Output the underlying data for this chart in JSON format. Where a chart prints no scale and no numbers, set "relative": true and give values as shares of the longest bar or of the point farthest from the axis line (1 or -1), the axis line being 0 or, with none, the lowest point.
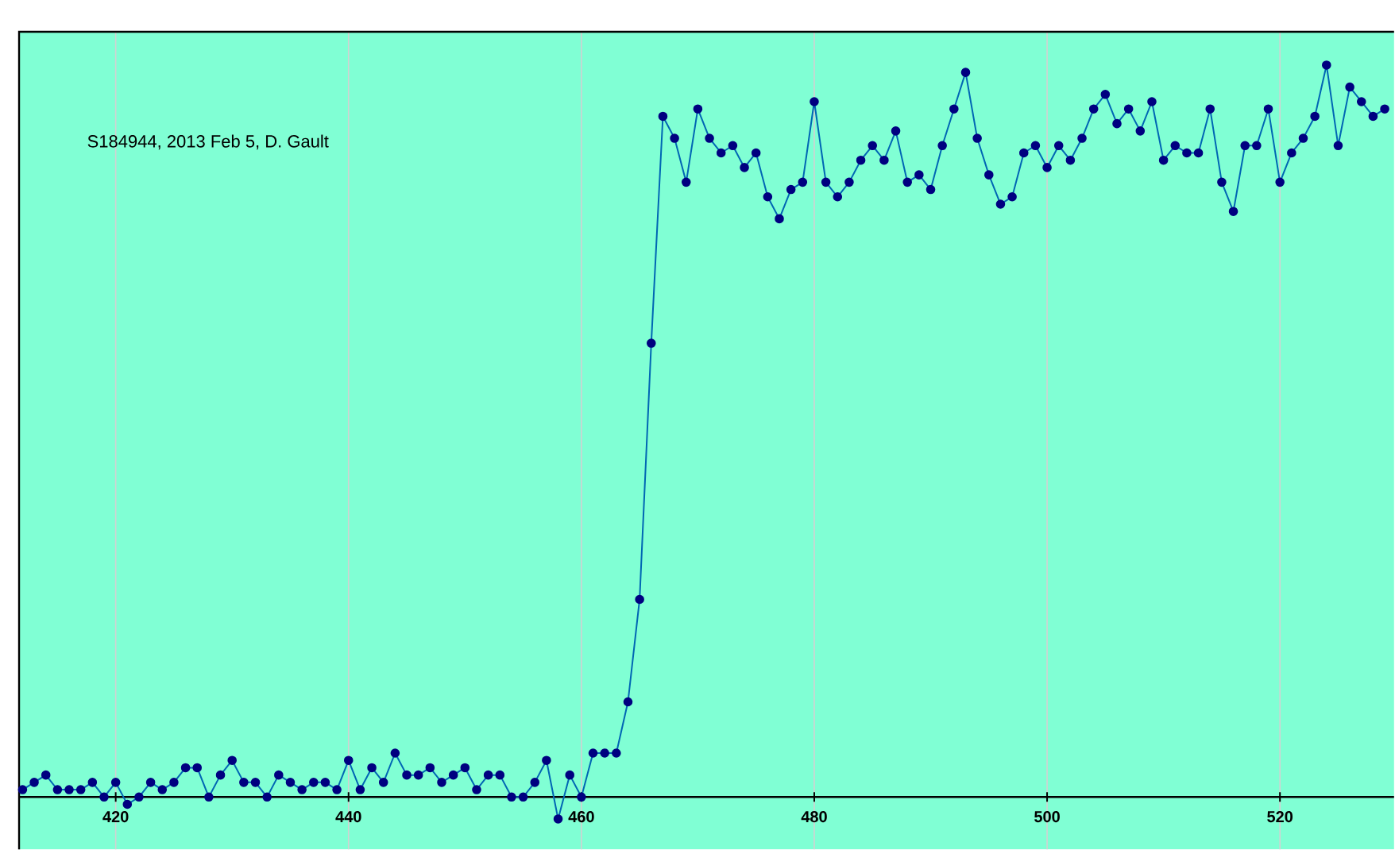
{
  "chart_data": {
    "type": "line",
    "relative": true,
    "marker": "circle",
    "line_style": "solid",
    "grid": "x",
    "annotations": [
      "S184944,  2013 Feb 5,  D. Gault"
    ],
    "xlim": [
      411.7,
      529.8
    ],
    "xticks": [
      420,
      440,
      460,
      480,
      500,
      520
    ],
    "x": [
      412,
      413,
      414,
      415,
      416,
      417,
      418,
      419,
      420,
      421,
      422,
      423,
      424,
      425,
      426,
      427,
      428,
      429,
      430,
      431,
      432,
      433,
      434,
      435,
      436,
      437,
      438,
      439,
      440,
      441,
      442,
      443,
      444,
      445,
      446,
      447,
      448,
      449,
      450,
      451,
      452,
      453,
      454,
      455,
      456,
      457,
      458,
      459,
      460,
      461,
      462,
      463,
      464,
      465,
      466,
      467,
      468,
      469,
      470,
      471,
      472,
      473,
      474,
      475,
      476,
      477,
      478,
      479,
      480,
      481,
      482,
      483,
      484,
      485,
      486,
      487,
      488,
      489,
      490,
      491,
      492,
      493,
      494,
      495,
      496,
      497,
      498,
      499,
      500,
      501,
      502,
      503,
      504,
      505,
      506,
      507,
      508,
      509,
      510,
      511,
      512,
      513,
      514,
      515,
      516,
      517,
      518,
      519,
      520,
      521,
      522,
      523,
      524,
      525,
      526,
      527,
      528,
      529
    ],
    "series": [
      {
        "color": "#000080",
        "values": [
          0.01,
          0.02,
          0.03,
          0.01,
          0.01,
          0.01,
          0.02,
          0.0,
          0.02,
          -0.01,
          0.0,
          0.02,
          0.01,
          0.02,
          0.04,
          0.04,
          0.0,
          0.03,
          0.05,
          0.02,
          0.02,
          0.0,
          0.03,
          0.02,
          0.01,
          0.02,
          0.02,
          0.01,
          0.05,
          0.01,
          0.04,
          0.02,
          0.06,
          0.03,
          0.03,
          0.04,
          0.02,
          0.03,
          0.04,
          0.01,
          0.03,
          0.03,
          0.0,
          0.0,
          0.02,
          0.05,
          -0.03,
          0.03,
          0.0,
          0.06,
          0.06,
          0.06,
          0.13,
          0.27,
          0.62,
          0.93,
          0.9,
          0.84,
          0.94,
          0.9,
          0.88,
          0.89,
          0.86,
          0.88,
          0.82,
          0.79,
          0.83,
          0.84,
          0.95,
          0.84,
          0.82,
          0.84,
          0.87,
          0.89,
          0.87,
          0.91,
          0.84,
          0.85,
          0.83,
          0.89,
          0.94,
          0.99,
          0.9,
          0.85,
          0.81,
          0.82,
          0.88,
          0.89,
          0.86,
          0.89,
          0.87,
          0.9,
          0.94,
          0.96,
          0.92,
          0.94,
          0.91,
          0.95,
          0.87,
          0.89,
          0.88,
          0.88,
          0.94,
          0.84,
          0.8,
          0.89,
          0.89,
          0.94,
          0.84,
          0.88,
          0.9,
          0.93,
          1.0,
          0.89,
          0.97,
          0.95,
          0.93,
          0.94
        ]
      }
    ]
  }
}
